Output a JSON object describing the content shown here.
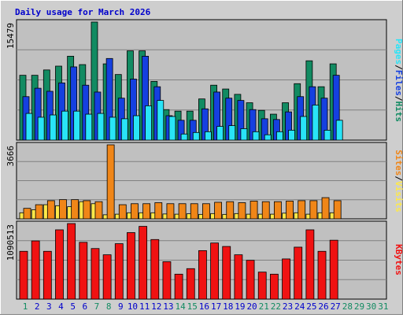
{
  "title": "Daily usage for March 2026",
  "colors": {
    "frame_bg": "#cecece",
    "plot_bg": "#c0c0c0",
    "title": "#0000cc",
    "hits": "#128b62",
    "files": "#1540e0",
    "pages": "#29e4f7",
    "visits": "#fde94a",
    "sites": "#f08618",
    "kbytes": "#f01212",
    "day_weekend": "#128b62",
    "day_weekday": "#0000cc",
    "day_future": "#128b62"
  },
  "chart_data": [
    {
      "type": "bar",
      "panel": "hits-files-pages",
      "ymax_label": "15479",
      "ylim": [
        0,
        15479
      ],
      "legend": [
        "Pages",
        "/",
        "Files",
        "/",
        "Hits"
      ],
      "categories": [
        "1",
        "2",
        "3",
        "4",
        "5",
        "6",
        "7",
        "8",
        "9",
        "10",
        "11",
        "12",
        "13",
        "14",
        "15",
        "16",
        "17",
        "18",
        "19",
        "20",
        "21",
        "22",
        "23",
        "24",
        "25",
        "26",
        "27"
      ],
      "series": [
        {
          "name": "Hits",
          "values": [
            8500,
            8500,
            9200,
            9700,
            11000,
            9900,
            15479,
            10000,
            8600,
            11700,
            11700,
            7700,
            4000,
            3800,
            3800,
            5400,
            7200,
            6700,
            6000,
            4900,
            3900,
            3400,
            4900,
            7400,
            10400,
            7000,
            10000
          ]
        },
        {
          "name": "Files",
          "values": [
            5700,
            6800,
            6400,
            7500,
            9600,
            7200,
            6300,
            10700,
            5500,
            8000,
            11000,
            7000,
            3200,
            2600,
            2600,
            4100,
            6300,
            5500,
            5200,
            4000,
            2800,
            2700,
            3700,
            5700,
            7000,
            5500,
            8500
          ]
        },
        {
          "name": "Pages",
          "values": [
            3500,
            3000,
            3300,
            3800,
            3800,
            3400,
            3500,
            3000,
            2800,
            3200,
            4500,
            5200,
            3100,
            800,
            1000,
            1100,
            1800,
            1900,
            1500,
            1100,
            700,
            1100,
            1300,
            3100,
            4600,
            1300,
            2600
          ]
        }
      ]
    },
    {
      "type": "bar",
      "panel": "visits-sites",
      "ymax_label": "3666",
      "ylim": [
        0,
        3666
      ],
      "legend": [
        "Sites",
        "/",
        "Visits"
      ],
      "categories": [
        "1",
        "2",
        "3",
        "4",
        "5",
        "6",
        "7",
        "8",
        "9",
        "10",
        "11",
        "12",
        "13",
        "14",
        "15",
        "16",
        "17",
        "18",
        "19",
        "20",
        "21",
        "22",
        "23",
        "24",
        "25",
        "26",
        "27"
      ],
      "series": [
        {
          "name": "Visits",
          "values": [
            300,
            450,
            700,
            650,
            600,
            850,
            750,
            200,
            230,
            300,
            300,
            300,
            240,
            230,
            250,
            220,
            260,
            220,
            260,
            230,
            230,
            230,
            280,
            300,
            230,
            300,
            300
          ]
        },
        {
          "name": "Sites",
          "values": [
            520,
            700,
            900,
            950,
            950,
            900,
            850,
            3666,
            700,
            750,
            750,
            800,
            750,
            750,
            750,
            750,
            820,
            850,
            800,
            880,
            850,
            850,
            880,
            900,
            900,
            1050,
            900
          ]
        }
      ]
    },
    {
      "type": "bar",
      "panel": "kbytes",
      "ymax_label": "1090513",
      "ylim": [
        0,
        1090513
      ],
      "legend": [
        "KBytes"
      ],
      "categories": [
        "1",
        "2",
        "3",
        "4",
        "5",
        "6",
        "7",
        "8",
        "9",
        "10",
        "11",
        "12",
        "13",
        "14",
        "15",
        "16",
        "17",
        "18",
        "19",
        "20",
        "21",
        "22",
        "23",
        "24",
        "25",
        "26",
        "27"
      ],
      "series": [
        {
          "name": "KBytes",
          "values": [
            690000,
            840000,
            690000,
            1000000,
            1090513,
            820000,
            730000,
            640000,
            800000,
            960000,
            1050000,
            860000,
            540000,
            360000,
            440000,
            700000,
            810000,
            760000,
            640000,
            560000,
            390000,
            360000,
            580000,
            750000,
            1000000,
            690000,
            850000
          ]
        }
      ]
    }
  ],
  "x_axis": {
    "days": [
      "1",
      "2",
      "3",
      "4",
      "5",
      "6",
      "7",
      "8",
      "9",
      "10",
      "11",
      "12",
      "13",
      "14",
      "15",
      "16",
      "17",
      "18",
      "19",
      "20",
      "21",
      "22",
      "23",
      "24",
      "25",
      "26",
      "27",
      "28",
      "29",
      "30",
      "31"
    ],
    "weekend_days": [
      "1",
      "7",
      "8",
      "14",
      "15",
      "21",
      "22"
    ],
    "future_days": [
      "28",
      "29",
      "30",
      "31"
    ]
  }
}
